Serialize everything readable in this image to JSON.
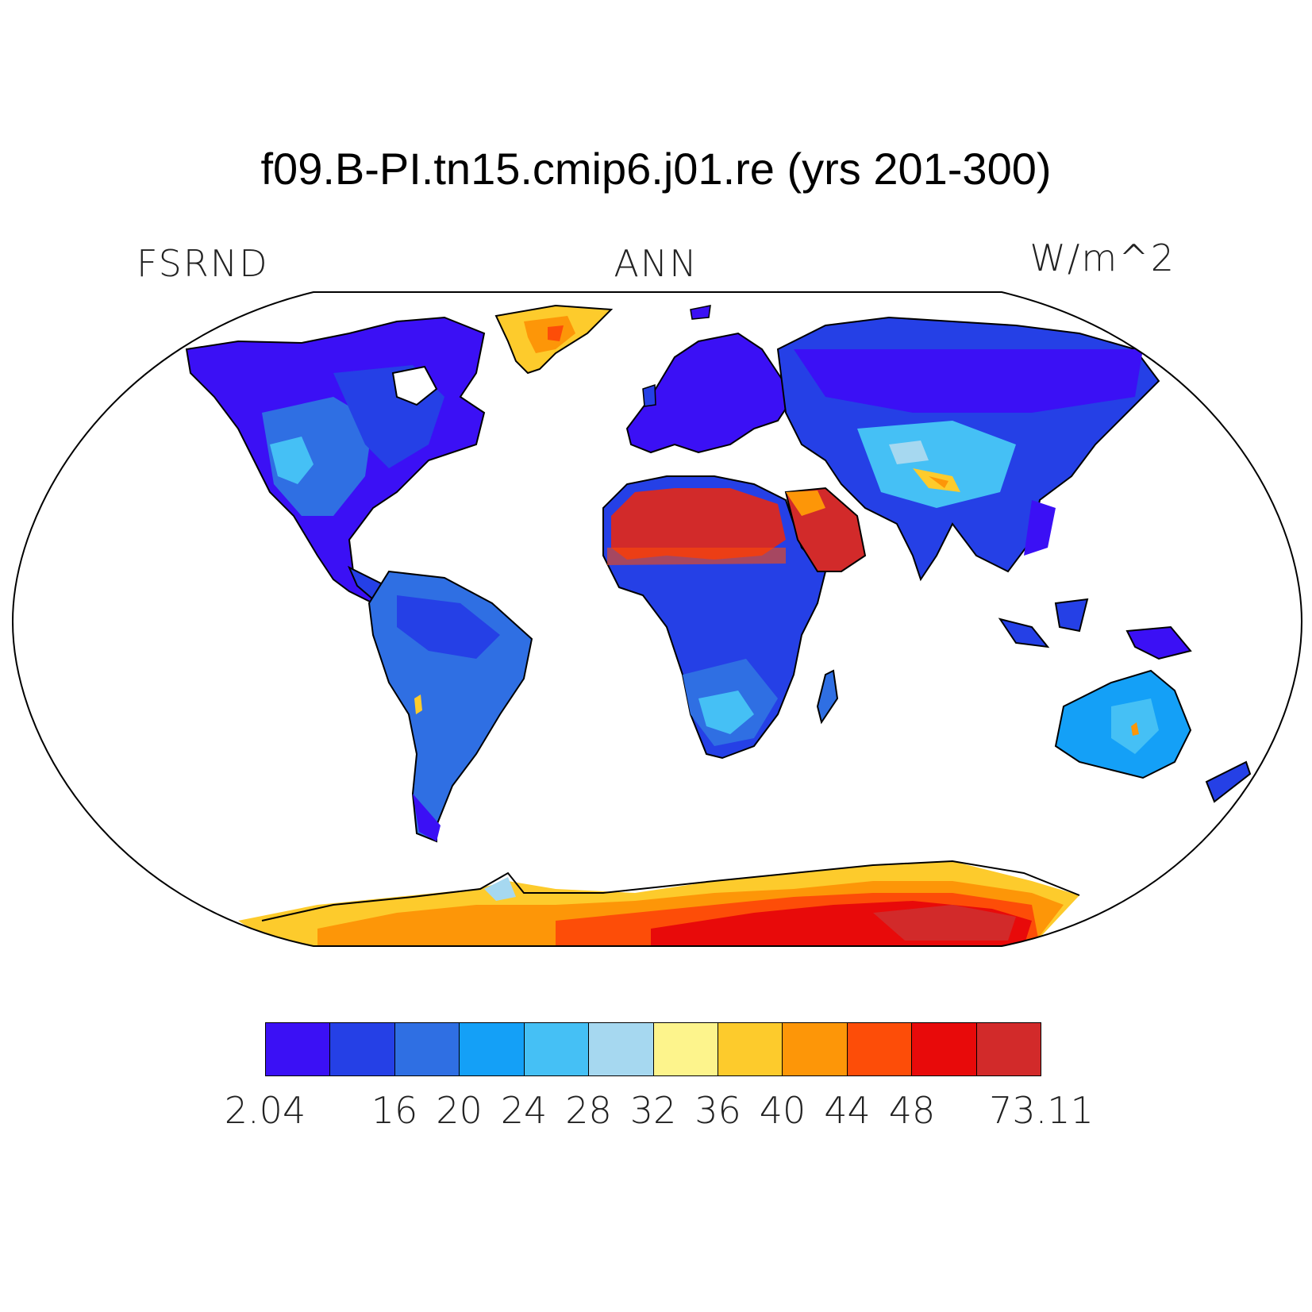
{
  "title": "f09.B-PI.tn15.cmip6.j01.re (yrs 201-300)",
  "variable": "FSRND",
  "season": "ANN",
  "units": "W/m^2",
  "colorbar": {
    "colors": [
      "#3b10f5",
      "#2540e6",
      "#2f6fe3",
      "#14a0f7",
      "#45c0f5",
      "#a6d8f0",
      "#fdf48c",
      "#fdcb2c",
      "#fd9608",
      "#fd4d08",
      "#e80a0a",
      "#d22a2a"
    ],
    "labels": [
      {
        "text": "2.04",
        "edge": 0
      },
      {
        "text": "16",
        "edge": 2
      },
      {
        "text": "20",
        "edge": 3
      },
      {
        "text": "24",
        "edge": 4
      },
      {
        "text": "28",
        "edge": 5
      },
      {
        "text": "32",
        "edge": 6
      },
      {
        "text": "36",
        "edge": 7
      },
      {
        "text": "40",
        "edge": 8
      },
      {
        "text": "44",
        "edge": 9
      },
      {
        "text": "48",
        "edge": 10
      },
      {
        "text": "73.11",
        "edge": 12
      }
    ]
  }
}
